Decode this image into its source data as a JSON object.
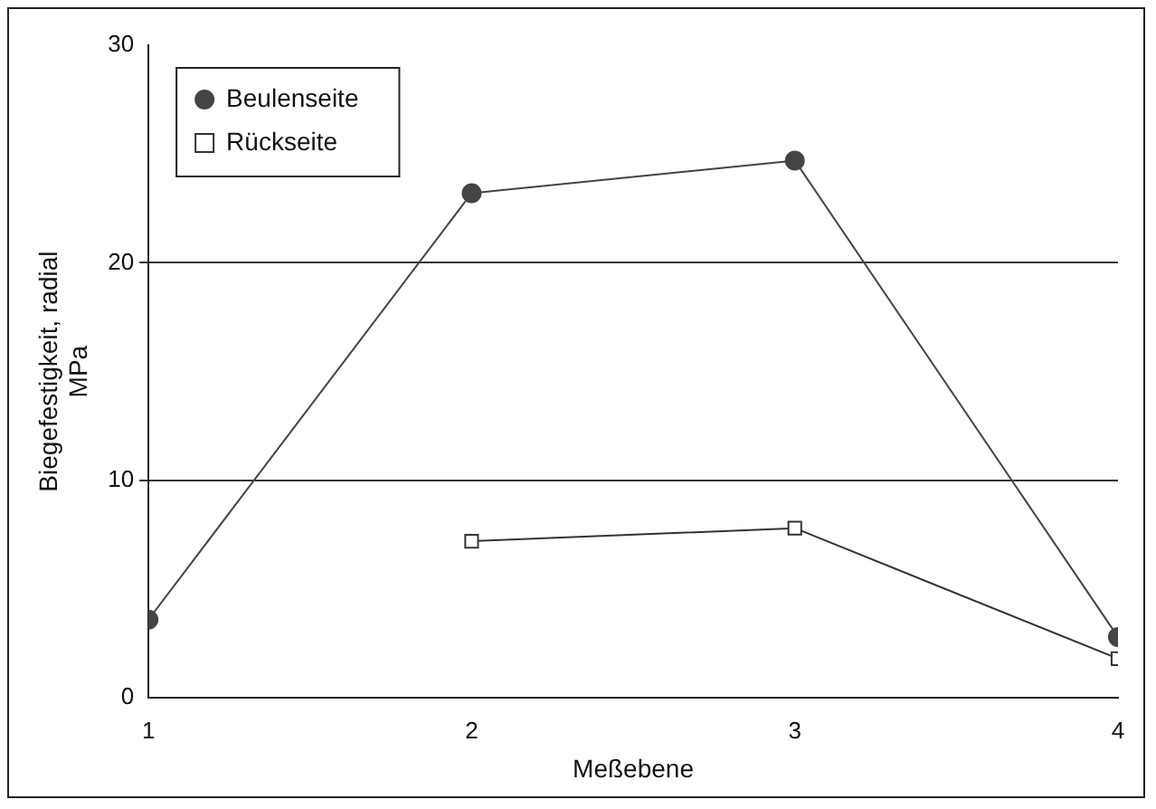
{
  "chart_data": {
    "type": "line",
    "xlabel": "Meßebene",
    "ylabel": "Biegefestigkeit, radial\nMPa",
    "x": [
      1,
      2,
      3,
      4
    ],
    "xlim": [
      1,
      4
    ],
    "xticks": [
      1,
      2,
      3,
      4
    ],
    "ylim": [
      0,
      30
    ],
    "yticks": [
      0,
      10,
      20,
      30
    ],
    "grid": "y",
    "legend": "top left",
    "series": [
      {
        "name": "Beulenseite",
        "color": "#444444",
        "marker": "circle",
        "values": [
          3.6,
          23.2,
          24.7,
          2.8
        ]
      },
      {
        "name": "Rückseite",
        "color": "#333333",
        "marker": "square",
        "values": [
          null,
          7.2,
          7.8,
          1.8
        ]
      }
    ]
  }
}
